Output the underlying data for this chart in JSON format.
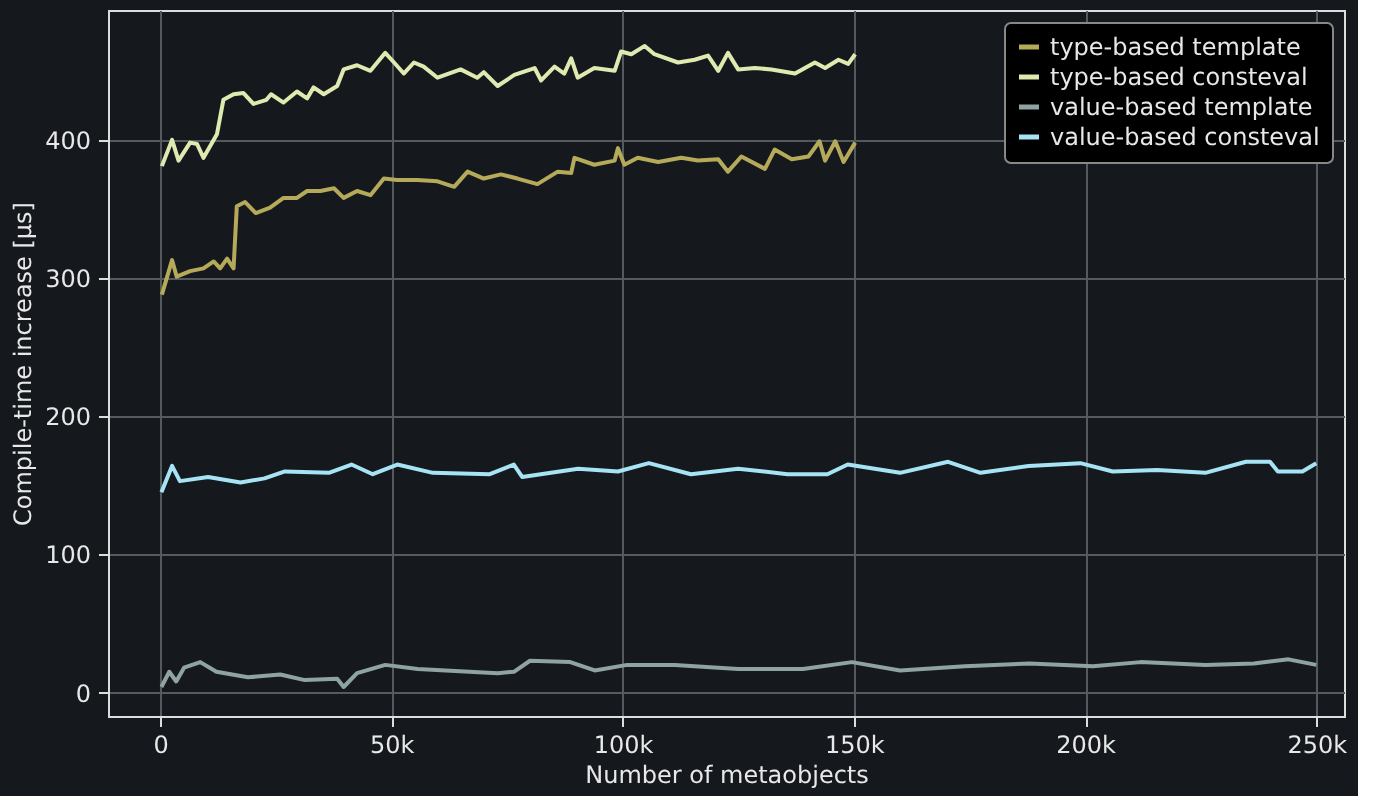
{
  "chart_data": {
    "type": "line",
    "xlabel": "Number of metaobjects",
    "ylabel": "Compile-time increase [µs]",
    "xlim": [
      -11250,
      256000
    ],
    "ylim": [
      -17,
      494
    ],
    "xticks": [
      0,
      {
        "value": 50000,
        "label": "50k"
      },
      {
        "value": 100000,
        "label": "100k"
      },
      {
        "value": 150000,
        "label": "150k"
      },
      {
        "value": 200000,
        "label": "200k"
      },
      {
        "value": 250000,
        "label": "250k"
      }
    ],
    "yticks": [
      0,
      100,
      200,
      300,
      400
    ],
    "grid": true,
    "legend": "top right",
    "line_style": "solid",
    "marker": "none",
    "series": [
      {
        "name": "type-based template",
        "color": "#b5a95a",
        "x": [
          400,
          2600,
          3600,
          6500,
          9400,
          11600,
          13000,
          14500,
          15900,
          16600,
          18400,
          20700,
          23800,
          26700,
          29600,
          31800,
          34700,
          37600,
          39700,
          42600,
          45500,
          48400,
          51300,
          55600,
          60000,
          63600,
          66500,
          70000,
          73700,
          77300,
          81600,
          86000,
          88900,
          89600,
          93900,
          98300,
          99000,
          100400,
          103300,
          107700,
          112700,
          116300,
          120700,
          122800,
          125700,
          130800,
          132900,
          136600,
          140200,
          142600,
          143800,
          146000,
          147800,
          150300
        ],
        "values": [
          288,
          313,
          301,
          305,
          307,
          312,
          307,
          314,
          307,
          352,
          355,
          347,
          351,
          358,
          358,
          363,
          363,
          365,
          358,
          363,
          360,
          372,
          371,
          371,
          370,
          366,
          377,
          372,
          375,
          372,
          368,
          377,
          376,
          387,
          382,
          385,
          394,
          382,
          387,
          384,
          387,
          385,
          386,
          377,
          388,
          379,
          393,
          386,
          388,
          399,
          385,
          399,
          384,
          398
        ]
      },
      {
        "name": "type-based consteval",
        "color": "#dfe9b0",
        "x": [
          400,
          2600,
          4000,
          6500,
          8000,
          9400,
          12300,
          13700,
          15900,
          18000,
          20200,
          23000,
          24000,
          26700,
          29600,
          31800,
          33200,
          35400,
          38300,
          39700,
          42600,
          45500,
          48700,
          50600,
          52700,
          54900,
          57000,
          60000,
          65000,
          68600,
          70000,
          73000,
          76600,
          81000,
          82400,
          85300,
          87400,
          88900,
          90300,
          93900,
          98300,
          99700,
          101900,
          104800,
          106900,
          112000,
          115600,
          118500,
          120700,
          122800,
          125000,
          128600,
          132200,
          137300,
          141600,
          143800,
          146700,
          148800,
          150300
        ],
        "values": [
          381,
          400,
          385,
          398,
          397,
          387,
          404,
          429,
          433,
          434,
          426,
          429,
          433,
          427,
          435,
          430,
          438,
          433,
          439,
          451,
          454,
          450,
          463,
          456,
          448,
          456,
          453,
          445,
          451,
          445,
          449,
          439,
          447,
          452,
          443,
          453,
          448,
          459,
          445,
          452,
          450,
          464,
          462,
          468,
          462,
          456,
          458,
          461,
          450,
          463,
          451,
          452,
          451,
          448,
          456,
          452,
          458,
          455,
          462
        ]
      },
      {
        "name": "value-based template",
        "color": "#8fa3a3",
        "x": [
          300,
          2000,
          3500,
          5200,
          8700,
          12200,
          19000,
          26000,
          31300,
          38300,
          39700,
          42600,
          48700,
          55700,
          73000,
          76500,
          80000,
          88700,
          94000,
          101000,
          111300,
          125000,
          139000,
          149600,
          160000,
          174000,
          188000,
          201700,
          212000,
          226000,
          236500,
          244000,
          250000
        ],
        "values": [
          4,
          15,
          8,
          18,
          22,
          15,
          11,
          13,
          9,
          10,
          4,
          14,
          20,
          17,
          14,
          15,
          23,
          22,
          16,
          20,
          20,
          17,
          17,
          22,
          16,
          19,
          21,
          19,
          22,
          20,
          21,
          24,
          20
        ]
      },
      {
        "name": "value-based consteval",
        "color": "#a6e3f5",
        "x": [
          300,
          2600,
          4300,
          10400,
          17400,
          22600,
          27000,
          36500,
          41400,
          46000,
          51300,
          59000,
          71300,
          76500,
          78300,
          90400,
          99000,
          105700,
          114800,
          125000,
          135700,
          144300,
          148700,
          160000,
          170400,
          177400,
          187800,
          199000,
          206000,
          215600,
          226000,
          234800,
          240000,
          241700,
          247000,
          250000
        ],
        "values": [
          145,
          164,
          153,
          156,
          152,
          155,
          160,
          159,
          165,
          158,
          165,
          159,
          158,
          165,
          156,
          162,
          160,
          166,
          158,
          162,
          158,
          158,
          165,
          159,
          167,
          159,
          164,
          166,
          160,
          161,
          159,
          167,
          167,
          160,
          160,
          166
        ]
      }
    ]
  }
}
